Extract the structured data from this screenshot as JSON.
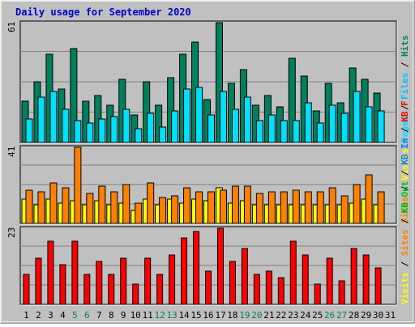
{
  "title": "Daily usage for September 2020",
  "chart_data": {
    "type": "bar",
    "categories": [
      "1",
      "2",
      "3",
      "4",
      "5",
      "6",
      "7",
      "8",
      "9",
      "10",
      "11",
      "12",
      "13",
      "14",
      "15",
      "16",
      "17",
      "18",
      "19",
      "20",
      "21",
      "22",
      "23",
      "24",
      "25",
      "26",
      "27",
      "28",
      "29",
      "30",
      "31"
    ],
    "weekend_days": [
      5,
      6,
      12,
      13,
      19,
      20,
      26,
      27
    ],
    "colors": {
      "background": "#c0c0c0",
      "frame": "#eeeeee",
      "title": "#0000cc",
      "hits": "#00805c",
      "files": "#00e0ff",
      "pages": "#00c0ff",
      "visits": "#ffff00",
      "sites": "#ff8000",
      "kb_f": "#ff0000",
      "kb_in": "#0080ff",
      "kb_out": "#00c000",
      "weekday_label": "#000000",
      "weekend_label": "#00805c"
    },
    "panels": [
      {
        "id": "hits_files",
        "max_label": "61",
        "ymax": 61,
        "legend": [
          {
            "text": "Hits",
            "color": "#00805c"
          },
          {
            "text": " / ",
            "color": "#000000"
          },
          {
            "text": "Files",
            "color": "#00c0ff"
          },
          {
            "text": " / ",
            "color": "#000000"
          },
          {
            "text": "Pages",
            "color": "#00e0ff"
          }
        ],
        "series": [
          {
            "name": "Hits",
            "color": "#00805c",
            "values": [
              21,
              31,
              45,
              27,
              48,
              21,
              24,
              19,
              32,
              14,
              31,
              19,
              33,
              45,
              51,
              22,
              61,
              30,
              37,
              19,
              24,
              18,
              43,
              34,
              16,
              30,
              20,
              38,
              32,
              25,
              0
            ]
          },
          {
            "name": "Files",
            "color": "#00e0ff",
            "values": [
              12,
              23,
              26,
              17,
              11,
              10,
              12,
              13,
              17,
              7,
              15,
              8,
              16,
              27,
              28,
              14,
              26,
              17,
              23,
              11,
              14,
              11,
              11,
              20,
              10,
              19,
              15,
              26,
              18,
              16,
              0
            ]
          }
        ]
      },
      {
        "id": "visits_sites",
        "max_label": "41",
        "ymax": 41,
        "legend": [
          {
            "text": "Visits",
            "color": "#ffff00"
          },
          {
            "text": " / ",
            "color": "#000000"
          },
          {
            "text": "Sites",
            "color": "#ff8000"
          }
        ],
        "series": [
          {
            "name": "Visits",
            "color": "#ffff00",
            "values": [
              13,
              10,
              13,
              11,
              12,
              10,
              12,
              10,
              11,
              7,
              13,
              10,
              13,
              11,
              13,
              12,
              19,
              11,
              12,
              10,
              10,
              10,
              10,
              10,
              10,
              10,
              10,
              11,
              13,
              10,
              0
            ]
          },
          {
            "name": "Sites",
            "color": "#ff8000",
            "values": [
              18,
              17,
              22,
              19,
              41,
              16,
              20,
              17,
              21,
              11,
              22,
              14,
              15,
              19,
              17,
              17,
              18,
              20,
              20,
              16,
              17,
              17,
              18,
              17,
              17,
              19,
              15,
              21,
              26,
              17,
              0
            ]
          }
        ]
      },
      {
        "id": "kbytes",
        "max_label": "23",
        "ymax": 23,
        "legend": [
          {
            "text": "KB F",
            "color": "#ff0000"
          },
          {
            "text": " / ",
            "color": "#000000"
          },
          {
            "text": "KB In",
            "color": "#0080ff"
          },
          {
            "text": " / ",
            "color": "#000000"
          },
          {
            "text": "KB Out",
            "color": "#00c000"
          },
          {
            "text": " / ",
            "color": "#000000"
          },
          {
            "text": "Sites",
            "color": "#ff8000"
          },
          {
            "text": " / ",
            "color": "#000000"
          },
          {
            "text": "Visits",
            "color": "#ffff00"
          }
        ],
        "series": [
          {
            "name": "KB F",
            "color": "#ff0000",
            "values": [
              9,
              14,
              19,
              12,
              19,
              9,
              13,
              9,
              14,
              6,
              14,
              9,
              15,
              20,
              22,
              10,
              23,
              13,
              17,
              9,
              10,
              8,
              19,
              15,
              6,
              14,
              7,
              17,
              15,
              11,
              0
            ]
          }
        ]
      }
    ]
  }
}
